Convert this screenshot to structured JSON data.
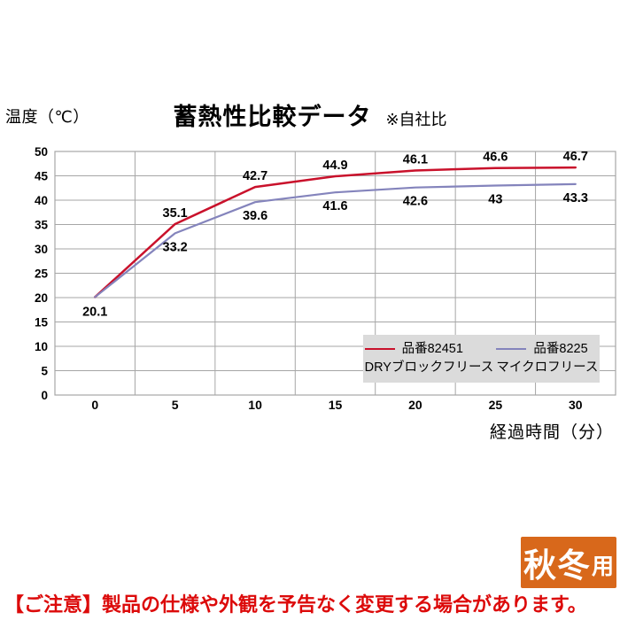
{
  "header": {
    "y_axis_unit": "温度（℃）",
    "title": "蓄熱性比較データ",
    "subtitle": "※自社比"
  },
  "chart_data": {
    "type": "line",
    "title": "蓄熱性比較データ",
    "subtitle": "※自社比",
    "ylabel": "温度（℃）",
    "xlabel": "経過時間（分）",
    "categories": [
      "0",
      "5",
      "10",
      "15",
      "20",
      "25",
      "30"
    ],
    "ylim": [
      0,
      50
    ],
    "ytick_step": 5,
    "grid": true,
    "legend_position": "inside-bottom-right",
    "colors": {
      "grid": "#A6A6A6",
      "tick_text": "#000000",
      "label_text": "#000000"
    },
    "series": [
      {
        "name": "品番82451",
        "subname": "DRYブロックフリース",
        "color": "#C9112B",
        "values": [
          20.1,
          35.1,
          42.7,
          44.9,
          46.1,
          46.6,
          46.7
        ],
        "labels": [
          "20.1",
          "35.1",
          "42.7",
          "44.9",
          "46.1",
          "46.6",
          "46.7"
        ],
        "label_side": "above"
      },
      {
        "name": "品番8225",
        "subname": "マイクロフリース",
        "color": "#8484BC",
        "values": [
          20.1,
          33.2,
          39.6,
          41.6,
          42.6,
          43,
          43.3
        ],
        "labels": [
          "",
          "33.2",
          "39.6",
          "41.6",
          "42.6",
          "43",
          "43.3"
        ],
        "label_side": "below"
      }
    ]
  },
  "x_axis_title": "経過時間（分）",
  "badge": {
    "text_main": "秋冬",
    "text_sub": "用",
    "bg_color": "#D8681B"
  },
  "notice": {
    "text": "【ご注意】製品の仕様や外観を予告なく変更する場合があります。",
    "color": "#DC0A0A"
  }
}
